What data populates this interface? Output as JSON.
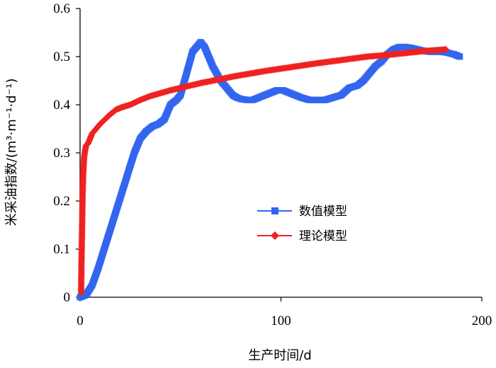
{
  "chart_data": {
    "type": "line",
    "xlabel": "生产时间/d",
    "ylabel": "米采油指数/(m³·m⁻¹·d⁻¹)",
    "xlim": [
      0,
      200
    ],
    "ylim": [
      0,
      0.6
    ],
    "xticks": [
      "0",
      "100",
      "200"
    ],
    "yticks": [
      "0",
      "0.1",
      "0.2",
      "0.3",
      "0.4",
      "0.5",
      "0.6"
    ],
    "grid": false,
    "legend_position": "center-right",
    "series": [
      {
        "name": "数值模型",
        "color": "#3366ee",
        "marker": "square",
        "x": [
          0,
          3,
          6,
          9,
          12,
          15,
          18,
          21,
          24,
          27,
          30,
          33,
          36,
          39,
          42,
          45,
          48,
          50,
          52,
          54,
          56,
          58,
          60,
          62,
          64,
          66,
          68,
          70,
          72,
          74,
          76,
          78,
          80,
          83,
          86,
          89,
          92,
          95,
          98,
          101,
          104,
          107,
          110,
          114,
          118,
          122,
          126,
          130,
          134,
          138,
          141,
          144,
          147,
          150,
          153,
          156,
          159,
          162,
          165,
          168,
          171,
          174,
          177,
          180,
          183,
          186,
          189
        ],
        "y": [
          0,
          0.005,
          0.025,
          0.06,
          0.1,
          0.14,
          0.18,
          0.22,
          0.26,
          0.3,
          0.33,
          0.345,
          0.355,
          0.36,
          0.37,
          0.4,
          0.41,
          0.42,
          0.45,
          0.48,
          0.51,
          0.52,
          0.53,
          0.52,
          0.5,
          0.48,
          0.465,
          0.45,
          0.44,
          0.43,
          0.42,
          0.415,
          0.412,
          0.41,
          0.41,
          0.415,
          0.42,
          0.425,
          0.43,
          0.43,
          0.425,
          0.42,
          0.415,
          0.41,
          0.41,
          0.41,
          0.415,
          0.42,
          0.435,
          0.44,
          0.45,
          0.465,
          0.48,
          0.49,
          0.505,
          0.515,
          0.52,
          0.52,
          0.518,
          0.515,
          0.512,
          0.51,
          0.51,
          0.51,
          0.508,
          0.505,
          0.5
        ]
      },
      {
        "name": "理论模型",
        "color": "#ee2222",
        "marker": "diamond",
        "x": [
          0.5,
          0.7,
          0.9,
          1.1,
          1.3,
          1.6,
          2,
          2.5,
          3,
          4,
          5,
          6,
          8,
          10,
          12,
          15,
          18,
          21,
          25,
          30,
          35,
          40,
          45,
          50,
          55,
          60,
          66,
          72,
          78,
          85,
          92,
          100,
          108,
          116,
          125,
          134,
          143,
          152,
          161,
          170,
          176,
          182
        ],
        "y": [
          0.01,
          0.07,
          0.12,
          0.17,
          0.22,
          0.26,
          0.29,
          0.305,
          0.315,
          0.32,
          0.33,
          0.34,
          0.35,
          0.36,
          0.368,
          0.38,
          0.39,
          0.395,
          0.4,
          0.41,
          0.418,
          0.424,
          0.43,
          0.435,
          0.44,
          0.445,
          0.45,
          0.455,
          0.46,
          0.465,
          0.47,
          0.475,
          0.48,
          0.485,
          0.49,
          0.495,
          0.5,
          0.503,
          0.507,
          0.511,
          0.513,
          0.515
        ]
      }
    ]
  }
}
